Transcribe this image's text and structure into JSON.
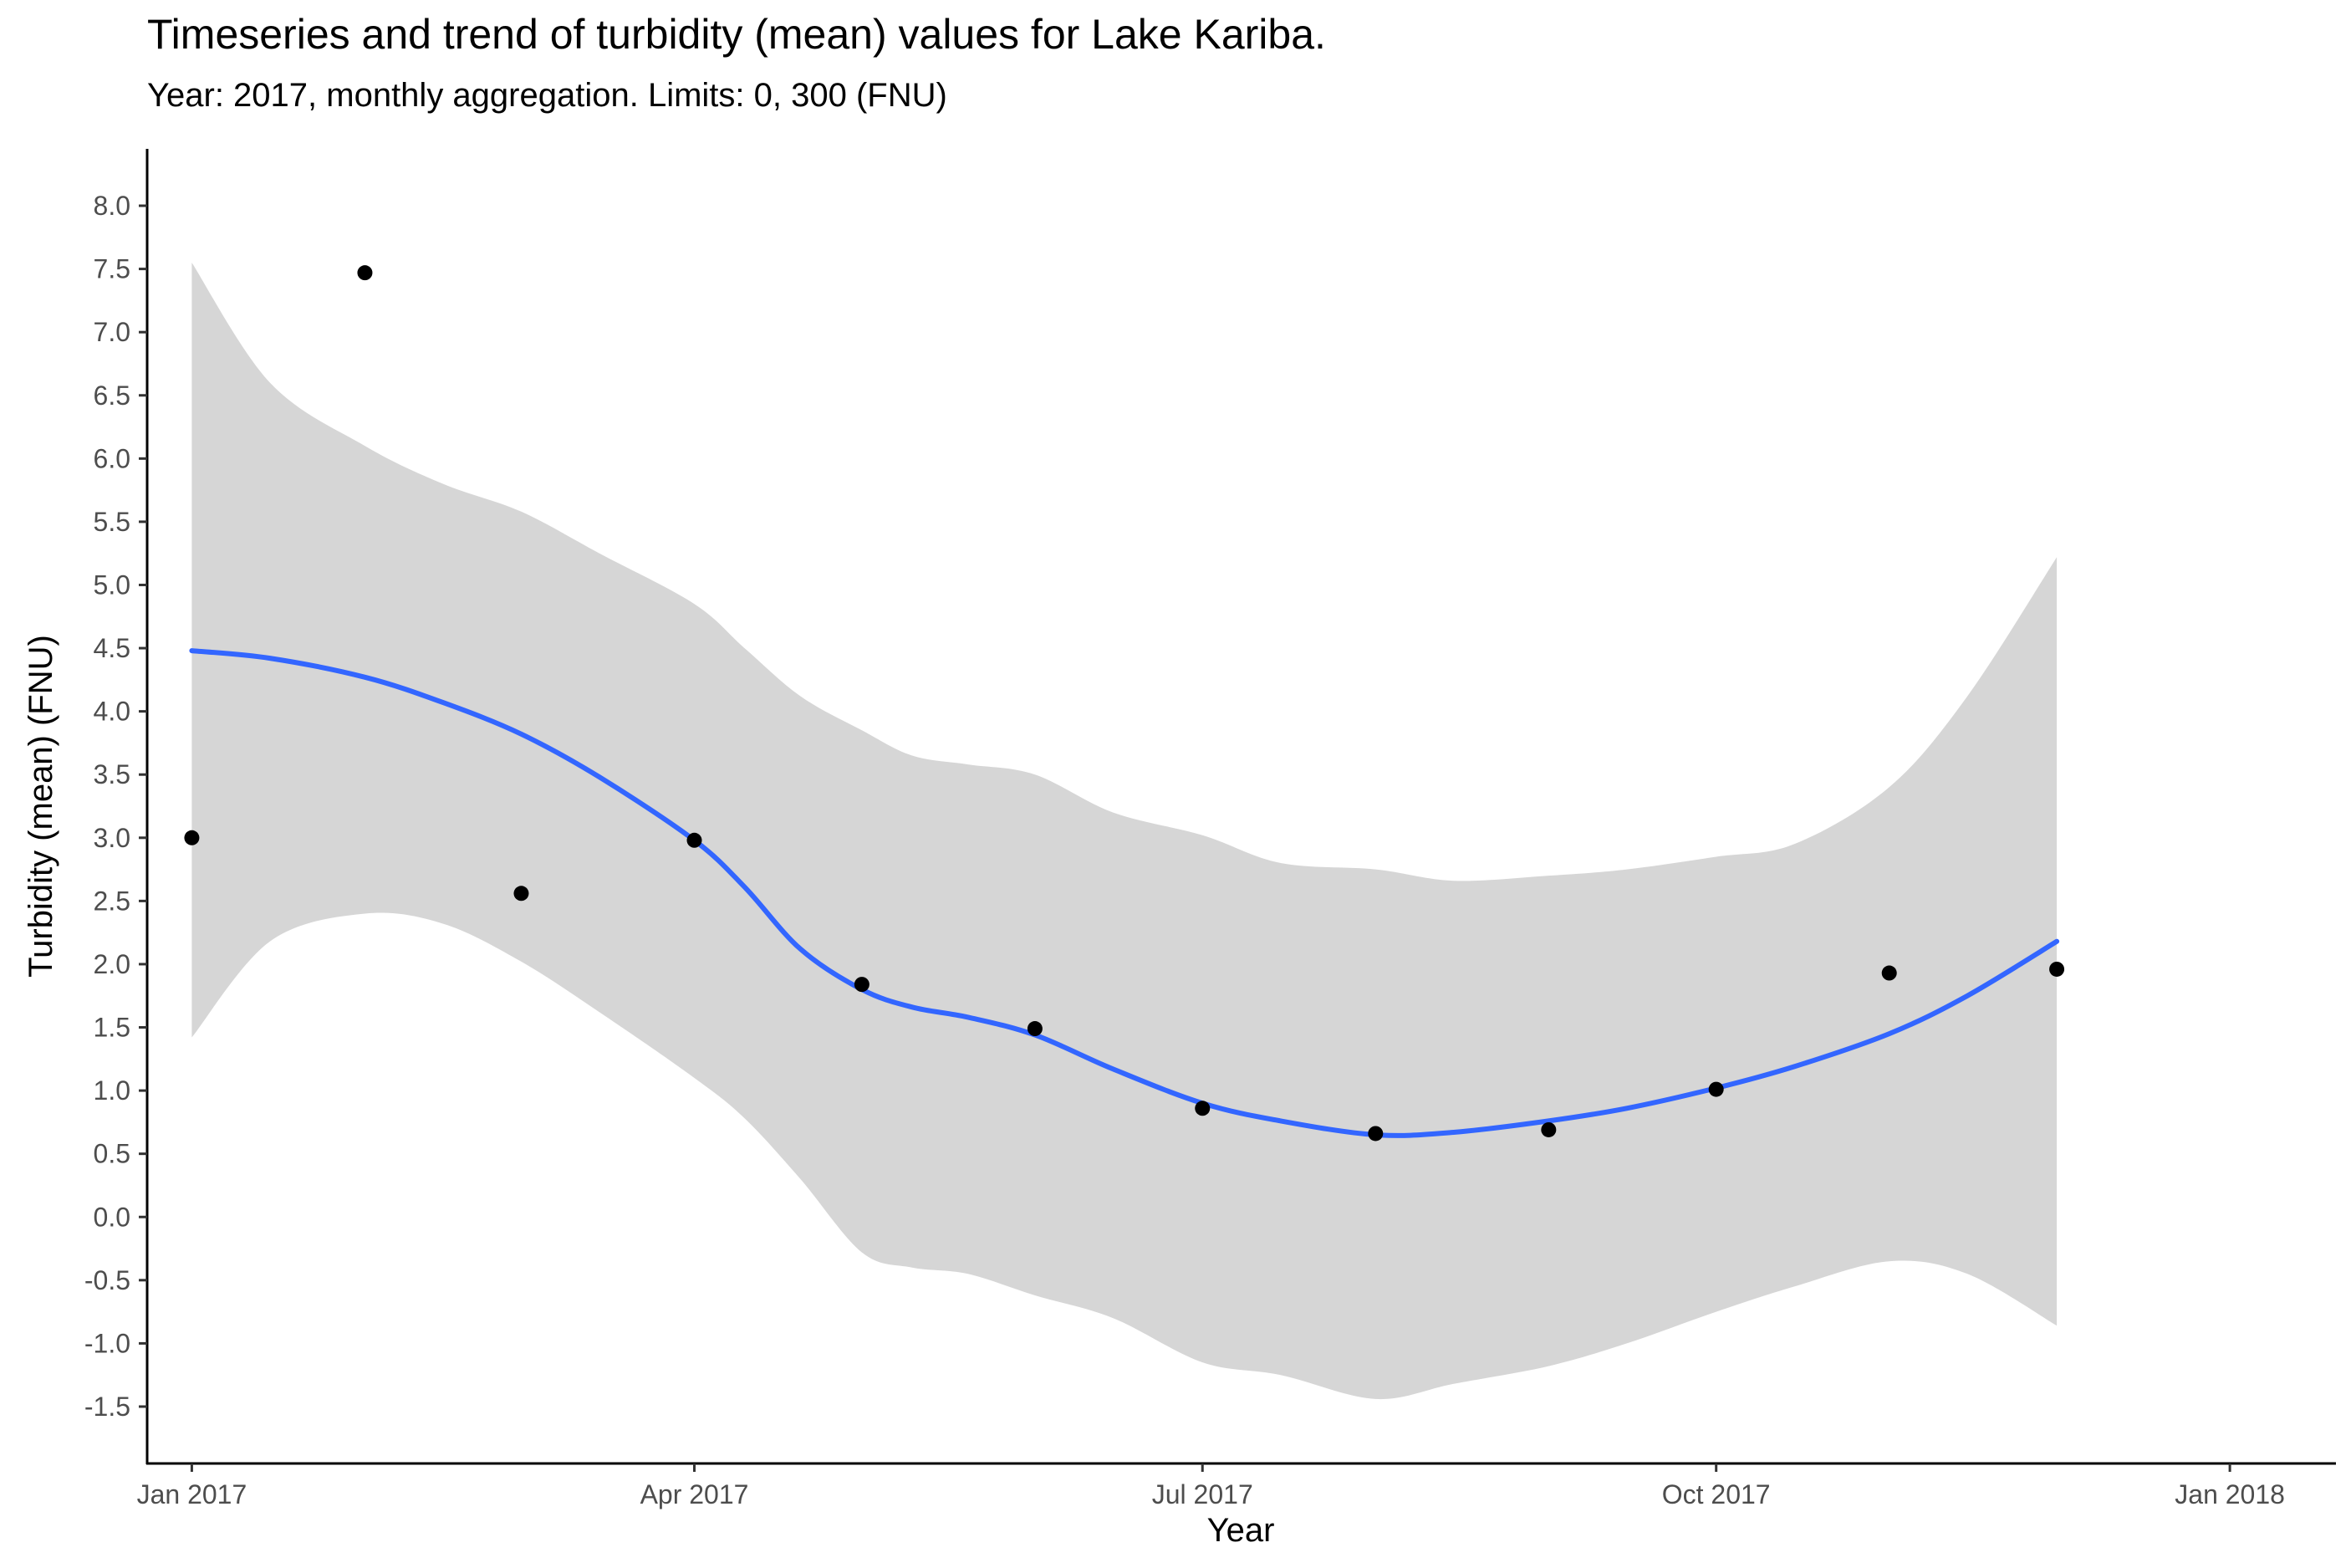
{
  "chart_data": {
    "type": "scatter",
    "title": "Timeseries and trend of turbidity (mean) values for Lake Kariba.",
    "subtitle": "Year: 2017, monthly aggregation. Limits: 0, 300 (FNU)",
    "xlabel": "Year",
    "ylabel": "Turbidity (mean) (FNU)",
    "x_ticks": [
      "Jan 2017",
      "Apr 2017",
      "Jul 2017",
      "Oct 2017",
      "Jan 2018"
    ],
    "y_ticks": [
      "-1.5",
      "-1.0",
      "-0.5",
      "0.0",
      "0.5",
      "1.0",
      "1.5",
      "2.0",
      "2.5",
      "3.0",
      "3.5",
      "4.0",
      "4.5",
      "5.0",
      "5.5",
      "6.0",
      "6.5",
      "7.0",
      "7.5",
      "8.0"
    ],
    "xlim": [
      "2016-12-24",
      "2018-01-20"
    ],
    "ylim": [
      -1.95,
      8.45
    ],
    "grid": false,
    "colors": {
      "points": "#000000",
      "trend": "#3366ff",
      "ribbon": "#d6d6d6",
      "axis": "#000000"
    },
    "points": [
      {
        "x": "2017-01-01",
        "y": 3.0
      },
      {
        "x": "2017-02-01",
        "y": 7.47
      },
      {
        "x": "2017-03-01",
        "y": 2.56
      },
      {
        "x": "2017-04-01",
        "y": 2.98
      },
      {
        "x": "2017-05-01",
        "y": 1.84
      },
      {
        "x": "2017-06-01",
        "y": 1.49
      },
      {
        "x": "2017-07-01",
        "y": 0.86
      },
      {
        "x": "2017-08-01",
        "y": 0.66
      },
      {
        "x": "2017-09-01",
        "y": 0.69
      },
      {
        "x": "2017-10-01",
        "y": 1.01
      },
      {
        "x": "2017-11-01",
        "y": 1.93
      },
      {
        "x": "2017-12-01",
        "y": 1.96
      }
    ],
    "trend": {
      "name": "",
      "x": [
        "2017-01-01",
        "2017-01-15",
        "2017-02-01",
        "2017-02-15",
        "2017-03-01",
        "2017-03-15",
        "2017-04-01",
        "2017-04-10",
        "2017-04-20",
        "2017-05-01",
        "2017-05-10",
        "2017-05-20",
        "2017-06-01",
        "2017-06-15",
        "2017-07-01",
        "2017-07-15",
        "2017-08-01",
        "2017-08-15",
        "2017-09-01",
        "2017-09-15",
        "2017-10-01",
        "2017-10-15",
        "2017-11-01",
        "2017-11-15",
        "2017-12-01"
      ],
      "y": [
        4.48,
        4.42,
        4.27,
        4.07,
        3.82,
        3.48,
        2.98,
        2.61,
        2.12,
        1.8,
        1.66,
        1.58,
        1.44,
        1.17,
        0.9,
        0.76,
        0.65,
        0.67,
        0.76,
        0.86,
        1.02,
        1.19,
        1.45,
        1.75,
        2.18
      ]
    },
    "ribbon_upper": [
      7.55,
      6.6,
      6.1,
      5.8,
      5.58,
      5.25,
      4.85,
      4.5,
      4.12,
      3.85,
      3.65,
      3.58,
      3.5,
      3.2,
      3.02,
      2.8,
      2.75,
      2.66,
      2.7,
      2.75,
      2.85,
      2.95,
      3.4,
      4.12,
      5.22
    ],
    "ribbon_lower": [
      1.42,
      2.18,
      2.4,
      2.32,
      2.02,
      1.62,
      1.1,
      0.78,
      0.3,
      -0.28,
      -0.4,
      -0.45,
      -0.62,
      -0.8,
      -1.15,
      -1.25,
      -1.44,
      -1.32,
      -1.18,
      -1.0,
      -0.75,
      -0.55,
      -0.35,
      -0.45,
      -0.86
    ]
  }
}
